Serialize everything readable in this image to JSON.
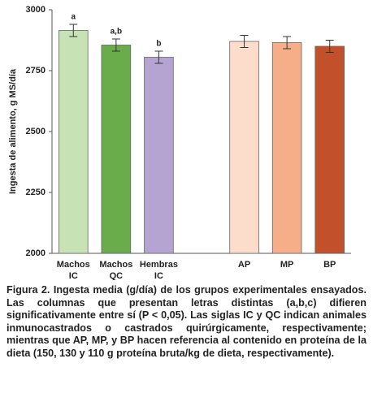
{
  "chart_data": {
    "type": "bar",
    "y_label": "Ingesta de alimento, g MS/día",
    "categories": [
      "Machos IC",
      "Machos QC",
      "Hembras IC",
      null,
      "AP",
      "MP",
      "BP"
    ],
    "values": [
      2915,
      2855,
      2805,
      null,
      2870,
      2865,
      2850
    ],
    "errors": [
      25,
      25,
      25,
      null,
      25,
      25,
      25
    ],
    "colors": [
      "#c7e3b6",
      "#6aab4c",
      "#b5a3d2",
      null,
      "#fcdccb",
      "#f6ae88",
      "#c2512b"
    ],
    "annotations": [
      "a",
      "a,b",
      "b"
    ],
    "ylim": [
      2000,
      3000
    ],
    "yticks": [
      2000,
      2250,
      2500,
      2750,
      3000
    ],
    "grid": false
  },
  "caption": "Figura 2. Ingesta media (g/día) de los grupos experimentales ensayados. Las columnas que presentan letras distintas (a,b,c) difieren significativamente entre sí (P < 0,05). Las siglas IC y QC indican animales inmunocastrados o castrados quirúrgicamente, respectivamente; mientras que AP, MP, y BP hacen referencia al contenido en proteína de la dieta (150, 130 y 110 g proteína bruta/kg de dieta, respectivamente)."
}
